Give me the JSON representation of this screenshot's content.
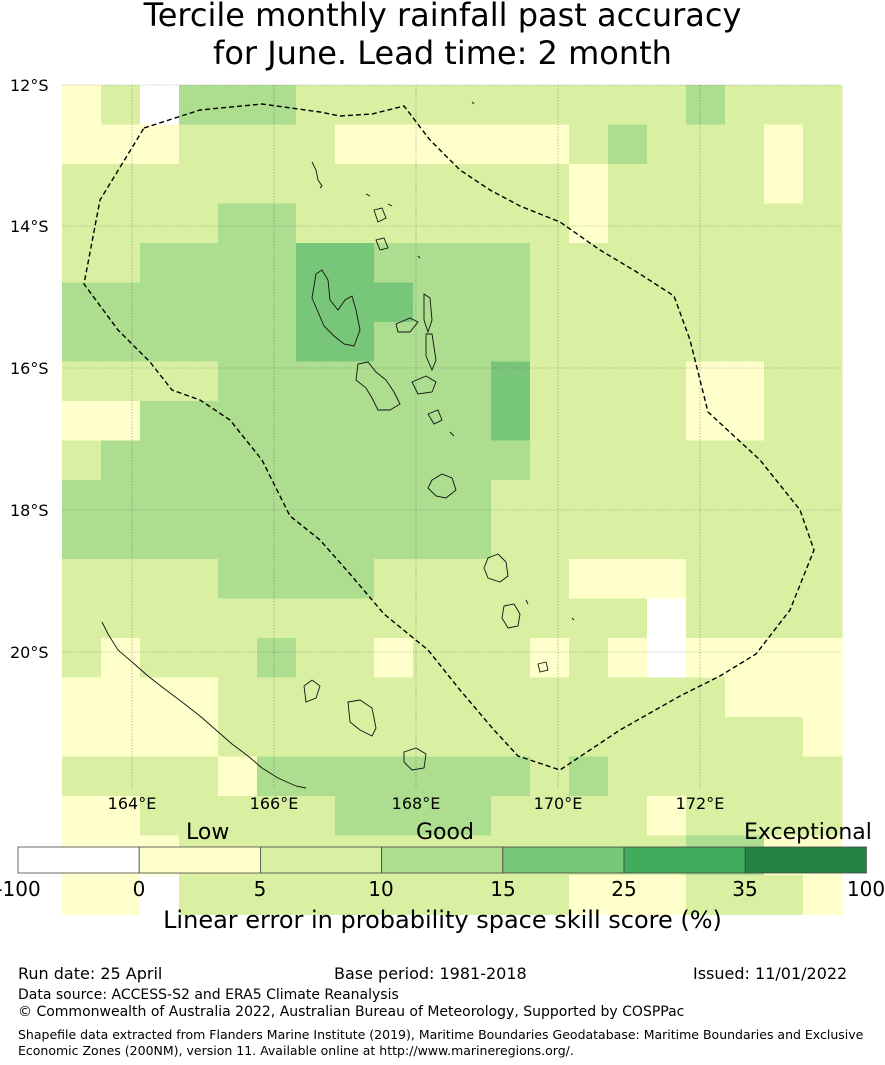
{
  "title_line1": "Tercile monthly rainfall past accuracy",
  "title_line2": "for June. Lead time: 2 month",
  "lat_labels": [
    "12°S",
    "14°S",
    "16°S",
    "18°S",
    "20°S"
  ],
  "lon_labels": [
    "164°E",
    "166°E",
    "168°E",
    "170°E",
    "172°E"
  ],
  "colorbar": {
    "categories": [
      "Low",
      "Good",
      "Exceptional"
    ],
    "ticks": [
      "-100",
      "0",
      "5",
      "10",
      "15",
      "25",
      "35",
      "100"
    ],
    "colors": [
      "#ffffff",
      "#ffffcc",
      "#d9f0a3",
      "#addd8e",
      "#78c679",
      "#41ab5d",
      "#238443"
    ],
    "title": "Linear error in probability space skill score (%)"
  },
  "footer": {
    "run_date": "Run date: 25 April",
    "base_period": "Base period: 1981-2018",
    "issued": "Issued: 11/01/2022",
    "data_source": "Data source: ACCESS-S2 and ERA5 Climate Reanalysis",
    "copyright": "© Commonwealth of Australia 2022, Australian Bureau of Meteorology, Supported by COSPPac",
    "shapefile_line1": "Shapefile data extracted from Flanders Marine Institute (2019), Maritime Boundaries Geodatabase: Maritime Boundaries and Exclusive",
    "shapefile_line2": "Economic Zones (200NM), version 11. Available online at http://www.marineregions.org/."
  },
  "grid_rows": [
    "12033322222222223222",
    "11122221111112322212",
    "22222222222221222212",
    "22223322222221222222",
    "22333344333322222222",
    "33333344433322222222",
    "33333344333322222222",
    "22223333333422221122",
    "11333333333422221122",
    "23333333333322222222",
    "33333333333222222222",
    "33333333333222222222",
    "22223333222221112222",
    "22222222222222202222",
    "21222322122212101111",
    "11112222222222222111",
    "11112222222222222221",
    "22221333333323222222",
    "11222223333222212222",
    "11122222222222223311",
    "11022222222221112221"
  ]
}
